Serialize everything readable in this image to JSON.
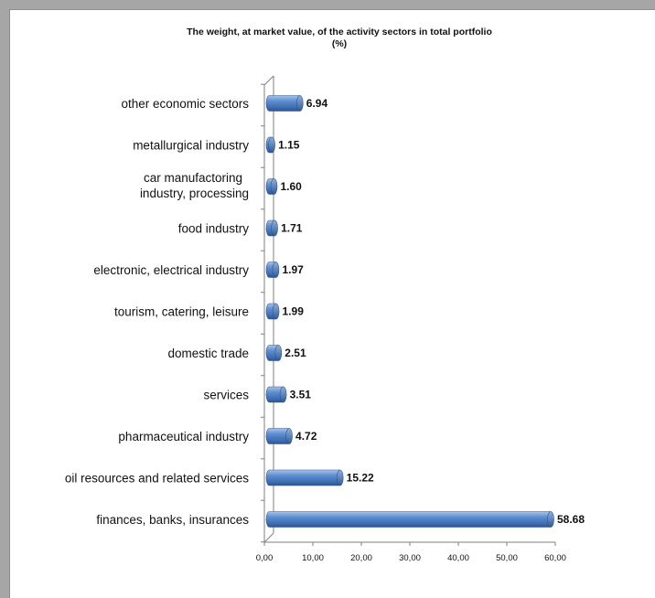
{
  "chart_data": {
    "type": "bar",
    "orientation": "horizontal",
    "title": "The weight, at market value, of the activity sectors in total portfolio",
    "subtitle": "(%)",
    "categories": [
      "finances, banks, insurances",
      "oil resources and related services",
      "pharmaceutical industry",
      "services",
      "domestic trade",
      "tourism, catering, leisure",
      "electronic, electrical industry",
      "food industry",
      "car manufactoring industry, processing",
      "metallurgical industry",
      "other economic sectors"
    ],
    "values": [
      58.68,
      15.22,
      4.72,
      3.51,
      2.51,
      1.99,
      1.97,
      1.71,
      1.6,
      1.15,
      6.94
    ],
    "value_labels": [
      "58.68",
      "15.22",
      "4.72",
      "3.51",
      "2.51",
      "1.99",
      "1.97",
      "1.71",
      "1.60",
      "1.15",
      "6.94"
    ],
    "xlim": [
      0,
      60
    ],
    "x_ticks": [
      "0,00",
      "10,00",
      "20,00",
      "30,00",
      "40,00",
      "50,00",
      "60,00"
    ],
    "grid": false,
    "legend": "none",
    "bar_color": "#4f81bd"
  }
}
